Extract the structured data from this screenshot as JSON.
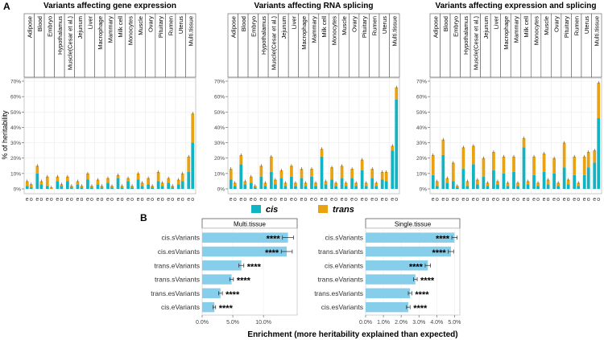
{
  "panel_labels": {
    "a": "A",
    "b": "B"
  },
  "legend": {
    "items": [
      {
        "label": "cis",
        "color": "#12b3c2"
      },
      {
        "label": "trans",
        "color": "#e9a211"
      }
    ]
  },
  "bar_fill": "#87ceeb",
  "stars": "****",
  "chart_data": [
    {
      "type": "bar",
      "subtype": "stacked-faceted",
      "title": "Variants affecting gene expression",
      "ylabel": "% of heritability",
      "yticks": [
        "0%",
        "10%",
        "20%",
        "30%",
        "40%",
        "50%",
        "60%",
        "70%"
      ],
      "ylim": [
        0,
        70
      ],
      "categories": [
        "Adipose",
        "Blood",
        "Embryo",
        "Hypothalamus",
        "Muscle(Cesar et al.)",
        "Jejunum",
        "Liver",
        "Macrophage",
        "Mammary",
        "Milk cell",
        "Monocytes",
        "Muscle",
        "Ovary",
        "Pituitary",
        "Rumen",
        "Uterus",
        "Multi.tissue"
      ],
      "pair_labels": [
        "e",
        "o"
      ],
      "series": [
        {
          "name": "cis",
          "values": [
            [
              2,
              1
            ],
            [
              10,
              3
            ],
            [
              2,
              0
            ],
            [
              5,
              2
            ],
            [
              5,
              1
            ],
            [
              3,
              1
            ],
            [
              6,
              1
            ],
            [
              3,
              1
            ],
            [
              4,
              1
            ],
            [
              7,
              1
            ],
            [
              5,
              1
            ],
            [
              6,
              2
            ],
            [
              3,
              1
            ],
            [
              5,
              2
            ],
            [
              4,
              1
            ],
            [
              3,
              5
            ],
            [
              11,
              30
            ]
          ]
        },
        {
          "name": "trans",
          "values": [
            [
              3,
              2
            ],
            [
              5,
              2
            ],
            [
              6,
              1
            ],
            [
              3,
              1
            ],
            [
              3,
              1
            ],
            [
              2,
              1
            ],
            [
              4,
              1
            ],
            [
              3,
              1
            ],
            [
              3,
              1
            ],
            [
              2,
              1
            ],
            [
              2,
              1
            ],
            [
              4,
              2
            ],
            [
              4,
              1
            ],
            [
              6,
              2
            ],
            [
              3,
              1
            ],
            [
              3,
              5
            ],
            [
              10,
              19
            ]
          ]
        }
      ]
    },
    {
      "type": "bar",
      "subtype": "stacked-faceted",
      "title": "Variants affecting RNA splicing",
      "ylabel": "",
      "yticks": [
        "0%",
        "10%",
        "20%",
        "30%",
        "40%",
        "50%",
        "60%",
        "70%"
      ],
      "ylim": [
        0,
        70
      ],
      "categories": [
        "Adipose",
        "Blood",
        "Embryo",
        "Hypothalamus",
        "Muscle(Cesar et al.)",
        "Jejunum",
        "Liver",
        "Macrophage",
        "Mammary",
        "Milk cell",
        "Monocytes",
        "Muscle",
        "Ovary",
        "Pituitary",
        "Rumen",
        "Uterus",
        "Multi.tissue"
      ],
      "pair_labels": [
        "e",
        "o"
      ],
      "series": [
        {
          "name": "cis",
          "values": [
            [
              6,
              2
            ],
            [
              16,
              3
            ],
            [
              4,
              1
            ],
            [
              8,
              2
            ],
            [
              11,
              3
            ],
            [
              7,
              2
            ],
            [
              8,
              2
            ],
            [
              7,
              2
            ],
            [
              8,
              2
            ],
            [
              21,
              3
            ],
            [
              6,
              2
            ],
            [
              7,
              2
            ],
            [
              7,
              2
            ],
            [
              12,
              2
            ],
            [
              7,
              2
            ],
            [
              6,
              5
            ],
            [
              25,
              58
            ]
          ]
        },
        {
          "name": "trans",
          "values": [
            [
              7,
              2
            ],
            [
              6,
              2
            ],
            [
              4,
              1
            ],
            [
              7,
              2
            ],
            [
              10,
              3
            ],
            [
              5,
              2
            ],
            [
              7,
              2
            ],
            [
              6,
              2
            ],
            [
              5,
              2
            ],
            [
              5,
              2
            ],
            [
              8,
              2
            ],
            [
              8,
              2
            ],
            [
              6,
              2
            ],
            [
              7,
              2
            ],
            [
              6,
              2
            ],
            [
              5,
              6
            ],
            [
              3,
              8
            ]
          ]
        }
      ]
    },
    {
      "type": "bar",
      "subtype": "stacked-faceted",
      "title": "Variants affecting expression and splicing",
      "ylabel": "",
      "yticks": [
        "0%",
        "10%",
        "20%",
        "30%",
        "40%",
        "50%",
        "60%",
        "70%"
      ],
      "ylim": [
        0,
        70
      ],
      "categories": [
        "Adipose",
        "Blood",
        "Embryo",
        "Hypothalamus",
        "Muscle(Cesar et al.)",
        "Jejunum",
        "Liver",
        "Macrophage",
        "Mammary",
        "Milk cell",
        "Monocytes",
        "Muscle",
        "Ovary",
        "Pituitary",
        "Rumen",
        "Uterus",
        "Multi.tissue"
      ],
      "pair_labels": [
        "e",
        "o"
      ],
      "series": [
        {
          "name": "cis",
          "values": [
            [
              9,
              2
            ],
            [
              22,
              4
            ],
            [
              5,
              1
            ],
            [
              13,
              2
            ],
            [
              16,
              3
            ],
            [
              8,
              2
            ],
            [
              12,
              3
            ],
            [
              10,
              2
            ],
            [
              11,
              2
            ],
            [
              27,
              3
            ],
            [
              9,
              2
            ],
            [
              11,
              3
            ],
            [
              10,
              2
            ],
            [
              14,
              3
            ],
            [
              9,
              2
            ],
            [
              9,
              14
            ],
            [
              17,
              46
            ]
          ]
        },
        {
          "name": "trans",
          "values": [
            [
              13,
              3
            ],
            [
              10,
              3
            ],
            [
              12,
              1
            ],
            [
              14,
              3
            ],
            [
              12,
              3
            ],
            [
              12,
              2
            ],
            [
              12,
              2
            ],
            [
              11,
              2
            ],
            [
              10,
              2
            ],
            [
              6,
              2
            ],
            [
              12,
              2
            ],
            [
              12,
              3
            ],
            [
              10,
              2
            ],
            [
              16,
              3
            ],
            [
              12,
              2
            ],
            [
              12,
              10
            ],
            [
              8,
              23
            ]
          ]
        }
      ]
    },
    {
      "type": "bar",
      "subtype": "horizontal",
      "title": "Multi.tissue",
      "categories": [
        "cis.sVariants",
        "cis.esVariants",
        "trans.eVariants",
        "trans.sVariants",
        "trans.esVariants",
        "cis.eVariants"
      ],
      "values": [
        14.0,
        13.8,
        6.4,
        4.8,
        3.0,
        2.0
      ],
      "errors": [
        0.9,
        0.9,
        0.4,
        0.3,
        0.3,
        0.2
      ],
      "significance": [
        "****",
        "****",
        "****",
        "****",
        "****",
        "****"
      ],
      "xticks": [
        "0.0%",
        "5.0%",
        "10.0%"
      ],
      "xtick_values": [
        0,
        5,
        10
      ],
      "xlim": [
        0,
        15.5
      ]
    },
    {
      "type": "bar",
      "subtype": "horizontal",
      "title": "Single.tissue",
      "categories": [
        "cis.sVariants",
        "trans.sVariants",
        "cis.eVariants",
        "trans.eVariants",
        "trans.esVariants",
        "cis.esVariants"
      ],
      "values": [
        5.0,
        4.8,
        3.5,
        2.8,
        2.5,
        2.4
      ],
      "errors": [
        0.15,
        0.15,
        0.15,
        0.1,
        0.1,
        0.1
      ],
      "significance": [
        "****",
        "****",
        "****",
        "****",
        "****",
        "****"
      ],
      "xticks": [
        "0.0%",
        "1.0%",
        "2.0%",
        "3.0%",
        "4.0%",
        "5.0%"
      ],
      "xtick_values": [
        0,
        1,
        2,
        3,
        4,
        5
      ],
      "xlim": [
        0,
        5.3
      ]
    }
  ],
  "panel_b": {
    "xlabel": "Enrichment (more heritability explained than expected)"
  }
}
